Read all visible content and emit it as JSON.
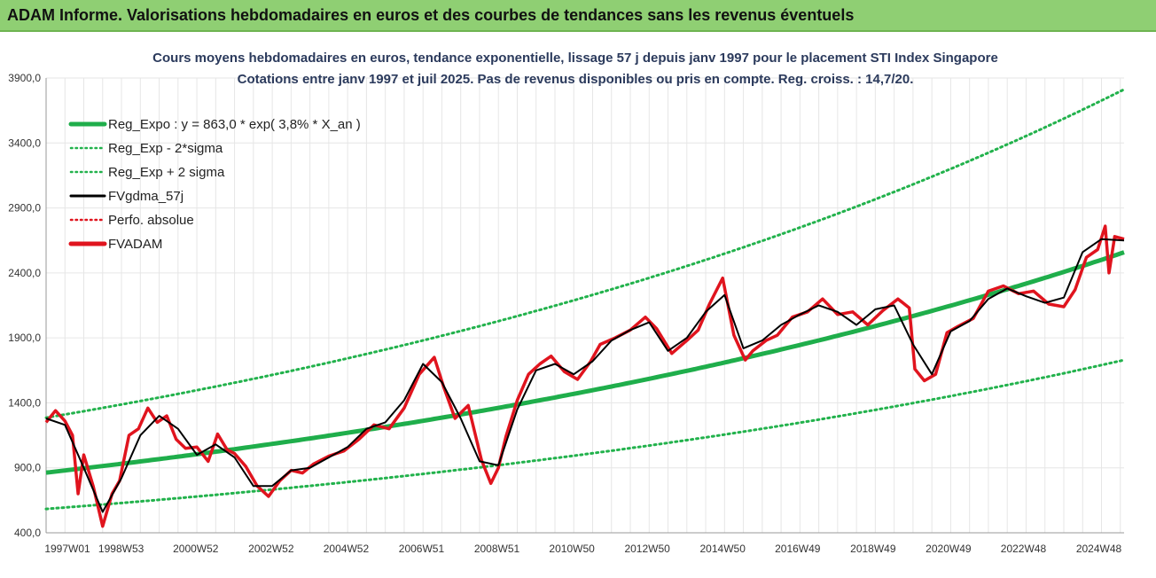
{
  "header": {
    "title": "ADAM Informe. Valorisations hebdomadaires en euros et des courbes de tendances sans les revenus éventuels"
  },
  "colors": {
    "header_bg": "#8fcf73",
    "trend": "#1fae4b",
    "band": "#22b24c",
    "smooth": "#000000",
    "abs": "#e0141e",
    "adam": "#e0141e",
    "grid": "#e6e6e6"
  },
  "chart_data": {
    "type": "line",
    "title": "Cours moyens hebdomadaires en euros, tendance exponentielle, lissage 57 j depuis janv 1997 pour le placement STI Index Singapore",
    "subtitle": "Cotations entre janv 1997 et juil 2025. Pas de revenus disponibles ou pris en compte. Reg. croiss. : 14,7/20.",
    "xlabel": "",
    "ylabel": "",
    "ylim": [
      400,
      3900
    ],
    "yticks": [
      400,
      900,
      1400,
      1900,
      2400,
      2900,
      3400,
      3900
    ],
    "ytick_labels": [
      "400,0",
      "900,0",
      "1400,0",
      "1900,0",
      "2400,0",
      "2900,0",
      "3400,0",
      "3900,0"
    ],
    "xlim": [
      1997.0,
      2025.6
    ],
    "xticks": [
      1997.0,
      1998.99,
      2000.97,
      2002.97,
      2004.96,
      2006.96,
      2008.96,
      2010.95,
      2012.95,
      2014.95,
      2016.94,
      2018.94,
      2020.94,
      2022.93,
      2024.93
    ],
    "xtick_labels": [
      "1997W01",
      "1998W53",
      "2000W52",
      "2002W52",
      "2004W52",
      "2006W51",
      "2008W51",
      "2010W50",
      "2012W50",
      "2014W50",
      "2016W49",
      "2018W49",
      "2020W49",
      "2022W48",
      "2024W48"
    ],
    "grid": true,
    "legend_position": "top-left",
    "legend": [
      {
        "label": "Reg_Expo : y = 863,0 * exp( 3,8% * X_an )",
        "color": "#1fae4b",
        "style": "solid-thick"
      },
      {
        "label": "Reg_Exp - 2*sigma",
        "color": "#22b24c",
        "style": "dotted"
      },
      {
        "label": "Reg_Exp + 2 sigma",
        "color": "#22b24c",
        "style": "dotted"
      },
      {
        "label": "FVgdma_57j",
        "color": "#000000",
        "style": "solid"
      },
      {
        "label": "Perfo. absolue",
        "color": "#e0141e",
        "style": "dotted"
      },
      {
        "label": "FVADAM",
        "color": "#e0141e",
        "style": "solid-thick"
      }
    ],
    "trend": {
      "a": 863.0,
      "b": 0.038,
      "x0": 1997.0,
      "lower_factor": 0.676,
      "upper_factor": 1.49
    },
    "series": [
      {
        "name": "FVADAM",
        "x": [
          1997.0,
          1997.25,
          1997.5,
          1997.7,
          1997.85,
          1998.0,
          1998.25,
          1998.5,
          1998.75,
          1998.95,
          1999.2,
          1999.45,
          1999.7,
          1999.95,
          2000.2,
          2000.45,
          2000.7,
          2001.0,
          2001.3,
          2001.55,
          2001.8,
          2002.0,
          2002.3,
          2002.6,
          2002.9,
          2003.2,
          2003.5,
          2003.8,
          2004.1,
          2004.5,
          2004.9,
          2005.3,
          2005.7,
          2006.1,
          2006.5,
          2006.9,
          2007.3,
          2007.55,
          2007.85,
          2008.2,
          2008.55,
          2008.8,
          2009.0,
          2009.2,
          2009.5,
          2009.8,
          2010.1,
          2010.4,
          2010.75,
          2011.1,
          2011.45,
          2011.7,
          2012.1,
          2012.5,
          2012.9,
          2013.2,
          2013.6,
          2014.0,
          2014.3,
          2014.6,
          2014.95,
          2015.25,
          2015.55,
          2015.75,
          2016.1,
          2016.4,
          2016.8,
          2017.2,
          2017.6,
          2018.0,
          2018.4,
          2018.8,
          2019.2,
          2019.6,
          2019.9,
          2020.05,
          2020.3,
          2020.6,
          2020.9,
          2021.2,
          2021.6,
          2022.0,
          2022.4,
          2022.8,
          2023.2,
          2023.6,
          2024.0,
          2024.3,
          2024.6,
          2024.9,
          2025.1,
          2025.2,
          2025.35,
          2025.6
        ],
        "values": [
          1250,
          1340,
          1260,
          1150,
          700,
          1000,
          760,
          450,
          700,
          800,
          1150,
          1200,
          1360,
          1250,
          1300,
          1120,
          1050,
          1060,
          950,
          1160,
          1040,
          1010,
          910,
          760,
          680,
          800,
          880,
          860,
          930,
          990,
          1030,
          1120,
          1230,
          1200,
          1360,
          1620,
          1750,
          1520,
          1280,
          1380,
          960,
          780,
          900,
          1140,
          1420,
          1620,
          1700,
          1760,
          1640,
          1580,
          1720,
          1850,
          1900,
          1960,
          2060,
          1970,
          1780,
          1880,
          1960,
          2160,
          2360,
          1920,
          1730,
          1800,
          1880,
          1920,
          2060,
          2100,
          2200,
          2080,
          2100,
          2000,
          2110,
          2200,
          2130,
          1660,
          1570,
          1620,
          1940,
          1990,
          2050,
          2260,
          2300,
          2240,
          2260,
          2160,
          2140,
          2270,
          2520,
          2580,
          2760,
          2400,
          2680,
          2660
        ]
      },
      {
        "name": "FVgdma_57j",
        "x": [
          1997.0,
          1997.5,
          1998.0,
          1998.5,
          1999.0,
          1999.5,
          2000.0,
          2000.5,
          2001.0,
          2001.5,
          2002.0,
          2002.5,
          2003.0,
          2003.5,
          2004.0,
          2004.5,
          2005.0,
          2005.5,
          2006.0,
          2006.5,
          2007.0,
          2007.5,
          2008.0,
          2008.5,
          2009.0,
          2009.5,
          2010.0,
          2010.5,
          2011.0,
          2011.5,
          2012.0,
          2012.5,
          2013.0,
          2013.5,
          2014.0,
          2014.5,
          2015.0,
          2015.5,
          2016.0,
          2016.5,
          2017.0,
          2017.5,
          2018.0,
          2018.5,
          2019.0,
          2019.5,
          2020.0,
          2020.5,
          2021.0,
          2021.5,
          2022.0,
          2022.5,
          2023.0,
          2023.5,
          2024.0,
          2024.5,
          2025.0,
          2025.6
        ],
        "values": [
          1280,
          1230,
          900,
          560,
          820,
          1150,
          1300,
          1200,
          1000,
          1080,
          980,
          760,
          760,
          880,
          900,
          980,
          1060,
          1200,
          1250,
          1420,
          1700,
          1560,
          1280,
          950,
          920,
          1350,
          1650,
          1700,
          1620,
          1720,
          1880,
          1960,
          2020,
          1800,
          1900,
          2100,
          2230,
          1820,
          1880,
          2000,
          2080,
          2150,
          2100,
          2000,
          2120,
          2150,
          1850,
          1620,
          1950,
          2030,
          2200,
          2280,
          2220,
          2170,
          2210,
          2560,
          2660,
          2650
        ]
      }
    ]
  }
}
